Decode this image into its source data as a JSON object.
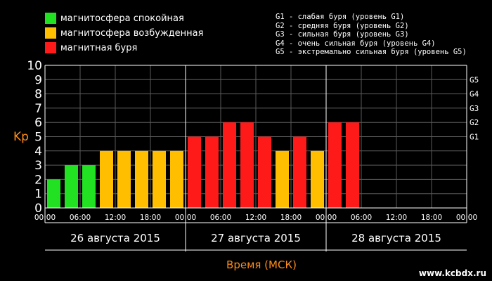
{
  "legend": {
    "items": [
      {
        "label": "магнитосфера спокойная",
        "color": "#22e022"
      },
      {
        "label": "магнитосфера возбужденная",
        "color": "#ffbf00"
      },
      {
        "label": "магнитная буря",
        "color": "#ff1a1a"
      }
    ],
    "storm_levels": [
      "G1 - слабая буря (уровень G1)",
      "G2 - средняя буря (уровень G2)",
      "G3 - сильная буря (уровень G3)",
      "G4 - очень сильная буря (уровень G4)",
      "G5 - экстремально сильная буря (уровень G5)"
    ]
  },
  "watermark": "www.kcbdx.ru",
  "chart_data": {
    "type": "bar",
    "ylabel": "Kp",
    "xlabel": "Время (МСК)",
    "ylim": [
      0,
      10
    ],
    "y_ticks": [
      "0",
      "1",
      "2",
      "3",
      "4",
      "5",
      "6",
      "7",
      "8",
      "9",
      "10"
    ],
    "g_levels": [
      {
        "label": "G1",
        "kp": 5
      },
      {
        "label": "G2",
        "kp": 6
      },
      {
        "label": "G3",
        "kp": 7
      },
      {
        "label": "G4",
        "kp": 8
      },
      {
        "label": "G5",
        "kp": 9
      }
    ],
    "x_tick_labels": [
      "00:00",
      "06:00",
      "12:00",
      "18:00",
      "00:00",
      "06:00",
      "12:00",
      "18:00",
      "00:00",
      "06:00",
      "12:00",
      "18:00",
      "00:00"
    ],
    "days": [
      "26 августа 2015",
      "27 августа 2015",
      "28 августа 2015"
    ],
    "grid": true,
    "colors": {
      "quiet": "#22e022",
      "active": "#ffbf00",
      "storm": "#ff1a1a",
      "axis_label": "#ff8c1a"
    },
    "bars": [
      {
        "slot": 0,
        "value": 2,
        "state": "quiet"
      },
      {
        "slot": 1,
        "value": 3,
        "state": "quiet"
      },
      {
        "slot": 2,
        "value": 3,
        "state": "quiet"
      },
      {
        "slot": 3,
        "value": 4,
        "state": "active"
      },
      {
        "slot": 4,
        "value": 4,
        "state": "active"
      },
      {
        "slot": 5,
        "value": 4,
        "state": "active"
      },
      {
        "slot": 6,
        "value": 4,
        "state": "active"
      },
      {
        "slot": 7,
        "value": 4,
        "state": "active"
      },
      {
        "slot": 8,
        "value": 5,
        "state": "storm"
      },
      {
        "slot": 9,
        "value": 5,
        "state": "storm"
      },
      {
        "slot": 10,
        "value": 6,
        "state": "storm"
      },
      {
        "slot": 11,
        "value": 6,
        "state": "storm"
      },
      {
        "slot": 12,
        "value": 5,
        "state": "storm"
      },
      {
        "slot": 13,
        "value": 4,
        "state": "active"
      },
      {
        "slot": 14,
        "value": 5,
        "state": "storm"
      },
      {
        "slot": 15,
        "value": 4,
        "state": "active"
      },
      {
        "slot": 16,
        "value": 6,
        "state": "storm"
      },
      {
        "slot": 17,
        "value": 6,
        "state": "storm"
      }
    ]
  }
}
